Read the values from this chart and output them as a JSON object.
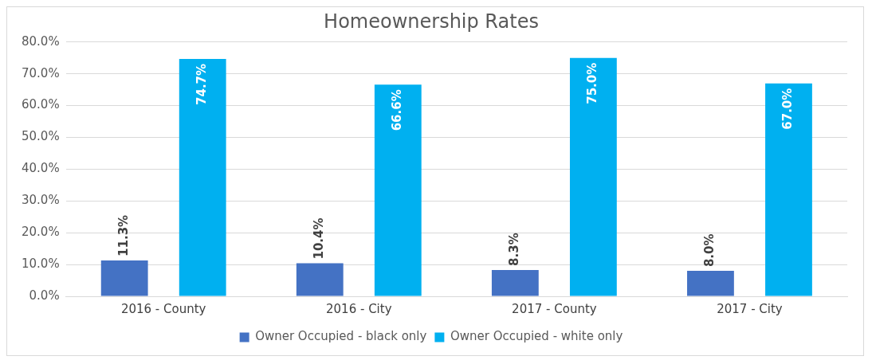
{
  "chart_data": {
    "type": "bar",
    "title": "Homeownership Rates",
    "categories": [
      "2016 - County",
      "2016 - City",
      "2017 - County",
      "2017 - City"
    ],
    "series": [
      {
        "name": "Owner Occupied - black only",
        "color": "#4472c4",
        "values": [
          11.3,
          10.4,
          8.3,
          8.0
        ],
        "value_labels": [
          "11.3%",
          "10.4%",
          "8.3%",
          "8.0%"
        ]
      },
      {
        "name": "Owner Occupied - white only",
        "color": "#00b0f0",
        "values": [
          74.7,
          66.6,
          75.0,
          67.0
        ],
        "value_labels": [
          "74.7%",
          "66.6%",
          "75.0%",
          "67.0%"
        ]
      }
    ],
    "ylim": [
      0,
      80
    ],
    "yticks": [
      {
        "value": 0,
        "label": "0.0%"
      },
      {
        "value": 10,
        "label": "10.0%"
      },
      {
        "value": 20,
        "label": "20.0%"
      },
      {
        "value": 30,
        "label": "30.0%"
      },
      {
        "value": 40,
        "label": "40.0%"
      },
      {
        "value": 50,
        "label": "50.0%"
      },
      {
        "value": 60,
        "label": "60.0%"
      },
      {
        "value": 70,
        "label": "70.0%"
      },
      {
        "value": 80,
        "label": "80.0%"
      }
    ],
    "grid": "y",
    "legend": "bottom"
  }
}
